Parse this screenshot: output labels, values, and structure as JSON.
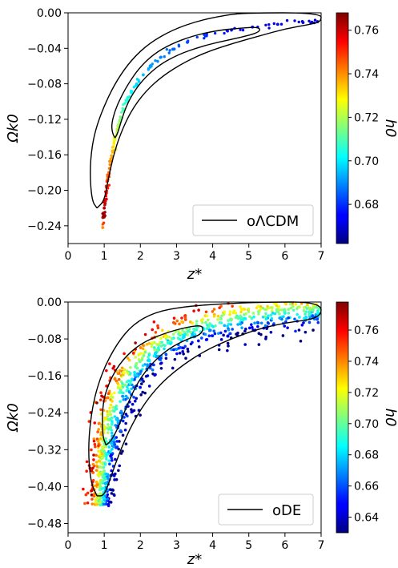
{
  "chart_data": [
    {
      "type": "scatter",
      "xlabel": "z*",
      "ylabel": "Ωk0",
      "colorbar_label": "h0",
      "xlim": [
        0,
        7
      ],
      "ylim": [
        -0.26,
        0.0
      ],
      "xticks": [
        0,
        1,
        2,
        3,
        4,
        5,
        6,
        7
      ],
      "yticks": [
        0.0,
        -0.04,
        -0.08,
        -0.12,
        -0.16,
        -0.2,
        -0.24
      ],
      "ytick_labels": [
        "0.00",
        "−0.04",
        "−0.08",
        "−0.12",
        "−0.16",
        "−0.20",
        "−0.24"
      ],
      "colorbar_range": [
        0.662,
        0.768
      ],
      "colorbar_ticks": [
        0.68,
        0.7,
        0.72,
        0.74,
        0.76
      ],
      "colorbar_tick_labels": [
        "0.68",
        "0.70",
        "0.72",
        "0.74",
        "0.76"
      ],
      "legend": {
        "label": "oΛCDM",
        "placement": "lower right"
      },
      "scatter_points": [
        [
          0.96,
          -0.242,
          0.74
        ],
        [
          0.98,
          -0.229,
          0.766
        ],
        [
          1.0,
          -0.22,
          0.762
        ],
        [
          1.03,
          -0.212,
          0.758
        ],
        [
          1.06,
          -0.203,
          0.755
        ],
        [
          1.08,
          -0.196,
          0.752
        ],
        [
          1.1,
          -0.188,
          0.748
        ],
        [
          1.13,
          -0.18,
          0.745
        ],
        [
          1.16,
          -0.171,
          0.741
        ],
        [
          1.2,
          -0.161,
          0.737
        ],
        [
          1.25,
          -0.151,
          0.732
        ],
        [
          1.3,
          -0.141,
          0.726
        ],
        [
          1.36,
          -0.131,
          0.721
        ],
        [
          1.43,
          -0.121,
          0.716
        ],
        [
          1.52,
          -0.11,
          0.71
        ],
        [
          1.62,
          -0.1,
          0.706
        ],
        [
          1.75,
          -0.09,
          0.702
        ],
        [
          1.9,
          -0.08,
          0.698
        ],
        [
          2.08,
          -0.07,
          0.695
        ],
        [
          2.3,
          -0.06,
          0.692
        ],
        [
          2.57,
          -0.05,
          0.689
        ],
        [
          2.9,
          -0.041,
          0.686
        ],
        [
          3.3,
          -0.033,
          0.683
        ],
        [
          3.8,
          -0.026,
          0.68
        ],
        [
          4.4,
          -0.02,
          0.677
        ],
        [
          5.1,
          -0.016,
          0.675
        ],
        [
          5.8,
          -0.013,
          0.673
        ],
        [
          6.5,
          -0.011,
          0.672
        ],
        [
          6.9,
          -0.01,
          0.671
        ]
      ],
      "contours": [
        {
          "level": "inner",
          "points": [
            [
              1.3,
              -0.141
            ],
            [
              1.23,
              -0.136
            ],
            [
              1.2,
              -0.126
            ],
            [
              1.29,
              -0.111
            ],
            [
              1.45,
              -0.096
            ],
            [
              1.65,
              -0.081
            ],
            [
              1.95,
              -0.063
            ],
            [
              2.35,
              -0.047
            ],
            [
              2.85,
              -0.035
            ],
            [
              3.45,
              -0.026
            ],
            [
              4.1,
              -0.02
            ],
            [
              4.8,
              -0.017
            ],
            [
              5.3,
              -0.016
            ],
            [
              5.3,
              -0.022
            ],
            [
              4.75,
              -0.028
            ],
            [
              4.15,
              -0.033
            ],
            [
              3.6,
              -0.039
            ],
            [
              3.05,
              -0.047
            ],
            [
              2.55,
              -0.058
            ],
            [
              2.15,
              -0.072
            ],
            [
              1.85,
              -0.087
            ],
            [
              1.62,
              -0.104
            ],
            [
              1.47,
              -0.122
            ],
            [
              1.38,
              -0.135
            ],
            [
              1.3,
              -0.141
            ]
          ]
        },
        {
          "level": "outer",
          "points": [
            [
              0.8,
              -0.22
            ],
            [
              0.66,
              -0.212
            ],
            [
              0.6,
              -0.18
            ],
            [
              0.66,
              -0.15
            ],
            [
              0.8,
              -0.126
            ],
            [
              1.05,
              -0.1
            ],
            [
              1.35,
              -0.076
            ],
            [
              1.75,
              -0.053
            ],
            [
              2.25,
              -0.034
            ],
            [
              2.9,
              -0.019
            ],
            [
              3.6,
              -0.009
            ],
            [
              4.3,
              -0.003
            ],
            [
              4.9,
              0.0
            ],
            [
              7.0,
              0.0
            ],
            [
              7.0,
              -0.01
            ],
            [
              6.7,
              -0.013
            ],
            [
              6.0,
              -0.018
            ],
            [
              5.3,
              -0.026
            ],
            [
              4.6,
              -0.034
            ],
            [
              3.9,
              -0.043
            ],
            [
              3.25,
              -0.055
            ],
            [
              2.65,
              -0.07
            ],
            [
              2.15,
              -0.088
            ],
            [
              1.75,
              -0.11
            ],
            [
              1.45,
              -0.136
            ],
            [
              1.24,
              -0.163
            ],
            [
              1.1,
              -0.19
            ],
            [
              1.0,
              -0.212
            ],
            [
              0.8,
              -0.22
            ]
          ]
        }
      ]
    },
    {
      "type": "scatter",
      "xlabel": "z*",
      "ylabel": "Ωk0",
      "colorbar_label": "h0",
      "xlim": [
        0,
        7
      ],
      "ylim": [
        -0.5,
        0.0
      ],
      "xticks": [
        0,
        1,
        2,
        3,
        4,
        5,
        6,
        7
      ],
      "yticks": [
        0.0,
        -0.08,
        -0.16,
        -0.24,
        -0.32,
        -0.4,
        -0.48
      ],
      "ytick_labels": [
        "0.00",
        "−0.08",
        "−0.16",
        "−0.24",
        "−0.32",
        "−0.40",
        "−0.48"
      ],
      "colorbar_range": [
        0.63,
        0.778
      ],
      "colorbar_ticks": [
        0.64,
        0.66,
        0.68,
        0.7,
        0.72,
        0.74,
        0.76
      ],
      "colorbar_tick_labels": [
        "0.64",
        "0.66",
        "0.68",
        "0.70",
        "0.72",
        "0.74",
        "0.76"
      ],
      "legend": {
        "label": "oDE",
        "placement": "lower right"
      },
      "scatter_band": {
        "center": [
          [
            0.9,
            -0.44
          ],
          [
            0.97,
            -0.38
          ],
          [
            1.05,
            -0.32
          ],
          [
            1.2,
            -0.26
          ],
          [
            1.45,
            -0.2
          ],
          [
            1.8,
            -0.15
          ],
          [
            2.3,
            -0.11
          ],
          [
            3.0,
            -0.075
          ],
          [
            3.8,
            -0.05
          ],
          [
            4.7,
            -0.035
          ],
          [
            5.6,
            -0.025
          ],
          [
            6.5,
            -0.02
          ],
          [
            7.0,
            -0.018
          ]
        ],
        "h0_high_side": 0.76,
        "h0_low_side": 0.63
      },
      "contours": [
        {
          "level": "inner",
          "points": [
            [
              1.05,
              -0.31
            ],
            [
              0.95,
              -0.29
            ],
            [
              0.95,
              -0.22
            ],
            [
              1.15,
              -0.17
            ],
            [
              1.5,
              -0.125
            ],
            [
              2.0,
              -0.09
            ],
            [
              2.65,
              -0.068
            ],
            [
              3.3,
              -0.054
            ],
            [
              3.75,
              -0.05
            ],
            [
              3.7,
              -0.07
            ],
            [
              3.3,
              -0.08
            ],
            [
              2.8,
              -0.1
            ],
            [
              2.35,
              -0.13
            ],
            [
              1.95,
              -0.17
            ],
            [
              1.65,
              -0.22
            ],
            [
              1.4,
              -0.27
            ],
            [
              1.2,
              -0.3
            ],
            [
              1.05,
              -0.31
            ]
          ]
        },
        {
          "level": "outer",
          "points": [
            [
              0.8,
              -0.42
            ],
            [
              0.62,
              -0.39
            ],
            [
              0.55,
              -0.31
            ],
            [
              0.68,
              -0.22
            ],
            [
              0.95,
              -0.15
            ],
            [
              1.35,
              -0.09
            ],
            [
              1.8,
              -0.048
            ],
            [
              2.4,
              -0.022
            ],
            [
              3.2,
              -0.01
            ],
            [
              4.2,
              -0.004
            ],
            [
              5.4,
              0.0
            ],
            [
              7.0,
              0.0
            ],
            [
              7.0,
              -0.035
            ],
            [
              6.0,
              -0.045
            ],
            [
              5.2,
              -0.06
            ],
            [
              4.5,
              -0.08
            ],
            [
              3.8,
              -0.105
            ],
            [
              3.2,
              -0.135
            ],
            [
              2.65,
              -0.17
            ],
            [
              2.2,
              -0.21
            ],
            [
              1.8,
              -0.26
            ],
            [
              1.45,
              -0.32
            ],
            [
              1.18,
              -0.38
            ],
            [
              1.0,
              -0.42
            ],
            [
              0.8,
              -0.42
            ]
          ]
        }
      ]
    }
  ]
}
